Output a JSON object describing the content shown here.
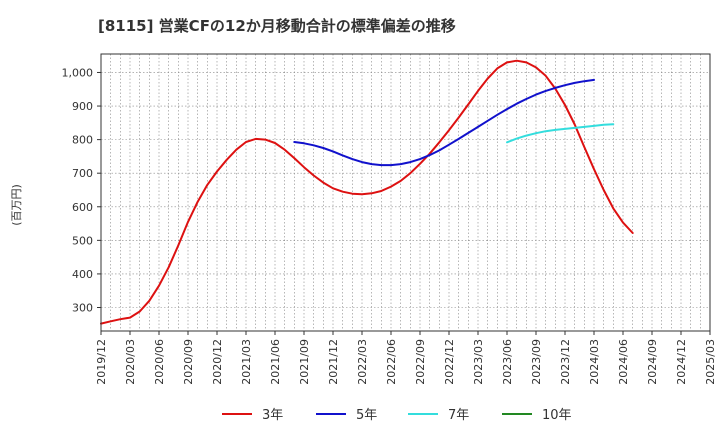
{
  "chart_data": {
    "type": "line",
    "title": "[8115]  営業CFの12か月移動合計の標準偏差の推移",
    "ylabel": "(百万円)",
    "xlabel": "",
    "ylim": [
      230,
      1055
    ],
    "yticks": [
      300,
      400,
      500,
      600,
      700,
      800,
      900,
      1000
    ],
    "ytick_labels": [
      "300",
      "400",
      "500",
      "600",
      "700",
      "800",
      "900",
      "1,000"
    ],
    "xlim": [
      "2019-12",
      "2025-03"
    ],
    "x_tick_labels": [
      "2019/12",
      "2020/03",
      "2020/06",
      "2020/09",
      "2020/12",
      "2021/03",
      "2021/06",
      "2021/09",
      "2021/12",
      "2022/03",
      "2022/06",
      "2022/09",
      "2022/12",
      "2023/03",
      "2023/06",
      "2023/09",
      "2023/12",
      "2024/03",
      "2024/06",
      "2024/09",
      "2024/12",
      "2025/03"
    ],
    "grid": true,
    "legend_position": "bottom",
    "series": [
      {
        "name": "3年",
        "color": "#dd1111",
        "points": [
          [
            "2019-12",
            252
          ],
          [
            "2020-01",
            259
          ],
          [
            "2020-02",
            265
          ],
          [
            "2020-03",
            270
          ],
          [
            "2020-04",
            288
          ],
          [
            "2020-05",
            320
          ],
          [
            "2020-06",
            365
          ],
          [
            "2020-07",
            420
          ],
          [
            "2020-08",
            485
          ],
          [
            "2020-09",
            555
          ],
          [
            "2020-10",
            615
          ],
          [
            "2020-11",
            665
          ],
          [
            "2020-12",
            705
          ],
          [
            "2021-01",
            740
          ],
          [
            "2021-02",
            770
          ],
          [
            "2021-03",
            793
          ],
          [
            "2021-04",
            802
          ],
          [
            "2021-05",
            800
          ],
          [
            "2021-06",
            790
          ],
          [
            "2021-07",
            770
          ],
          [
            "2021-08",
            745
          ],
          [
            "2021-09",
            718
          ],
          [
            "2021-10",
            693
          ],
          [
            "2021-11",
            672
          ],
          [
            "2021-12",
            655
          ],
          [
            "2022-01",
            645
          ],
          [
            "2022-02",
            639
          ],
          [
            "2022-03",
            637
          ],
          [
            "2022-04",
            640
          ],
          [
            "2022-05",
            647
          ],
          [
            "2022-06",
            660
          ],
          [
            "2022-07",
            677
          ],
          [
            "2022-08",
            700
          ],
          [
            "2022-09",
            728
          ],
          [
            "2022-10",
            758
          ],
          [
            "2022-11",
            792
          ],
          [
            "2022-12",
            828
          ],
          [
            "2023-01",
            866
          ],
          [
            "2023-02",
            905
          ],
          [
            "2023-03",
            945
          ],
          [
            "2023-04",
            982
          ],
          [
            "2023-05",
            1012
          ],
          [
            "2023-06",
            1030
          ],
          [
            "2023-07",
            1035
          ],
          [
            "2023-08",
            1030
          ],
          [
            "2023-09",
            1015
          ],
          [
            "2023-10",
            990
          ],
          [
            "2023-11",
            952
          ],
          [
            "2023-12",
            903
          ],
          [
            "2024-01",
            845
          ],
          [
            "2024-02",
            778
          ],
          [
            "2024-03",
            712
          ],
          [
            "2024-04",
            650
          ],
          [
            "2024-05",
            595
          ],
          [
            "2024-06",
            553
          ],
          [
            "2024-07",
            522
          ]
        ]
      },
      {
        "name": "5年",
        "color": "#1111cc",
        "points": [
          [
            "2021-08",
            793
          ],
          [
            "2021-09",
            789
          ],
          [
            "2021-10",
            783
          ],
          [
            "2021-11",
            775
          ],
          [
            "2021-12",
            765
          ],
          [
            "2022-01",
            753
          ],
          [
            "2022-02",
            742
          ],
          [
            "2022-03",
            733
          ],
          [
            "2022-04",
            727
          ],
          [
            "2022-05",
            724
          ],
          [
            "2022-06",
            724
          ],
          [
            "2022-07",
            727
          ],
          [
            "2022-08",
            733
          ],
          [
            "2022-09",
            742
          ],
          [
            "2022-10",
            754
          ],
          [
            "2022-11",
            768
          ],
          [
            "2022-12",
            785
          ],
          [
            "2023-01",
            802
          ],
          [
            "2023-02",
            820
          ],
          [
            "2023-03",
            838
          ],
          [
            "2023-04",
            856
          ],
          [
            "2023-05",
            874
          ],
          [
            "2023-06",
            891
          ],
          [
            "2023-07",
            907
          ],
          [
            "2023-08",
            921
          ],
          [
            "2023-09",
            934
          ],
          [
            "2023-10",
            945
          ],
          [
            "2023-11",
            954
          ],
          [
            "2023-12",
            962
          ],
          [
            "2024-01",
            969
          ],
          [
            "2024-02",
            974
          ],
          [
            "2024-03",
            978
          ]
        ]
      },
      {
        "name": "7年",
        "color": "#33dddd",
        "points": [
          [
            "2023-06",
            792
          ],
          [
            "2023-07",
            803
          ],
          [
            "2023-08",
            812
          ],
          [
            "2023-09",
            819
          ],
          [
            "2023-10",
            825
          ],
          [
            "2023-11",
            829
          ],
          [
            "2023-12",
            832
          ],
          [
            "2024-01",
            835
          ],
          [
            "2024-02",
            838
          ],
          [
            "2024-03",
            841
          ],
          [
            "2024-04",
            844
          ],
          [
            "2024-05",
            846
          ]
        ]
      },
      {
        "name": "10年",
        "color": "#228822",
        "points": []
      }
    ]
  }
}
